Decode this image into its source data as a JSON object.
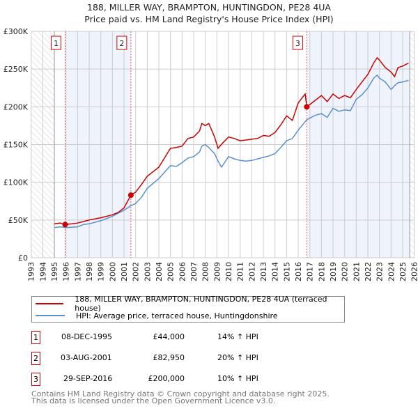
{
  "title_line1": "188, MILLER WAY, BRAMPTON, HUNTINGDON, PE28 4UA",
  "title_line2": "Price paid vs. HM Land Registry's House Price Index (HPI)",
  "colors": {
    "property": "#cc0000",
    "hpi": "#5b8fd0",
    "shade": "#eef3fc"
  },
  "chart_data": {
    "type": "line",
    "title": "188, MILLER WAY, BRAMPTON, HUNTINGDON, PE28 4UA - Price paid vs. HM Land Registry's House Price Index (HPI)",
    "xlabel": "",
    "ylabel": "",
    "xlim": [
      1993,
      2026
    ],
    "ylim": [
      0,
      300000
    ],
    "grid": true,
    "x_ticks": [
      "1993",
      "1994",
      "1995",
      "1996",
      "1997",
      "1998",
      "1999",
      "2000",
      "2001",
      "2002",
      "2003",
      "2004",
      "2005",
      "2006",
      "2007",
      "2008",
      "2009",
      "2010",
      "2011",
      "2012",
      "2013",
      "2014",
      "2015",
      "2016",
      "2017",
      "2018",
      "2019",
      "2020",
      "2021",
      "2022",
      "2023",
      "2024",
      "2025",
      "2026"
    ],
    "y_ticks": [
      {
        "v": 0,
        "label": "£0"
      },
      {
        "v": 50000,
        "label": "£50K"
      },
      {
        "v": 100000,
        "label": "£100K"
      },
      {
        "v": 150000,
        "label": "£150K"
      },
      {
        "v": 200000,
        "label": "£200K"
      },
      {
        "v": 250000,
        "label": "£250K"
      },
      {
        "v": 300000,
        "label": "£300K"
      }
    ],
    "hatched_ranges": [
      [
        1993,
        1995
      ],
      [
        2025.6,
        2026
      ]
    ],
    "shaded_ranges": [
      [
        1995.93,
        2001.59
      ],
      [
        2016.74,
        2025.6
      ]
    ],
    "series": [
      {
        "name": "188, MILLER WAY, BRAMPTON, HUNTINGDON, PE28 4UA (terraced house)",
        "color": "#cc0000",
        "x": [
          1995,
          1995.5,
          1995.93,
          1996.5,
          1997,
          1997.5,
          1998,
          1999,
          2000,
          2000.5,
          2001,
          2001.59,
          2002,
          2002.5,
          2003,
          2004,
          2005,
          2005.5,
          2006,
          2006.5,
          2007,
          2007.5,
          2007.7,
          2008,
          2008.3,
          2008.8,
          2009.1,
          2009.5,
          2010,
          2010.5,
          2011,
          2011.5,
          2012,
          2012.5,
          2013,
          2013.5,
          2014,
          2014.5,
          2015,
          2015.5,
          2016,
          2016.6,
          2016.74,
          2017,
          2017.5,
          2018,
          2018.5,
          2019,
          2019.5,
          2020,
          2020.5,
          2021,
          2021.5,
          2022,
          2022.5,
          2022.8,
          2023,
          2023.5,
          2024,
          2024.3,
          2024.6,
          2025,
          2025.5
        ],
        "values": [
          45000,
          46000,
          44000,
          45000,
          46000,
          48000,
          50000,
          53000,
          57000,
          60000,
          66000,
          82950,
          87000,
          97000,
          108000,
          120000,
          145000,
          146000,
          148000,
          158000,
          160000,
          168000,
          178000,
          175000,
          178000,
          160000,
          145000,
          152000,
          160000,
          158000,
          155000,
          156000,
          157000,
          158000,
          162000,
          161000,
          166000,
          176000,
          188000,
          182000,
          205000,
          217000,
          200000,
          203000,
          209000,
          215000,
          207000,
          217000,
          211000,
          215000,
          212000,
          223000,
          233000,
          243000,
          258000,
          265000,
          262000,
          252000,
          246000,
          240000,
          252000,
          254000,
          258000
        ]
      },
      {
        "name": "HPI: Average price, terraced house, Huntingdonshire",
        "color": "#5b8fd0",
        "x": [
          1995,
          1995.5,
          1996,
          1997,
          1997.5,
          1998,
          1999,
          2000,
          2000.5,
          2001,
          2001.59,
          2002,
          2002.5,
          2003,
          2004,
          2005,
          2005.5,
          2006,
          2006.5,
          2007,
          2007.5,
          2007.7,
          2008,
          2008.3,
          2008.8,
          2009.1,
          2009.4,
          2010,
          2010.5,
          2011,
          2011.5,
          2012,
          2012.5,
          2013,
          2013.5,
          2014,
          2014.5,
          2015,
          2015.5,
          2016,
          2016.74,
          2017,
          2017.5,
          2018,
          2018.5,
          2019,
          2019.5,
          2020,
          2020.5,
          2021,
          2021.5,
          2022,
          2022.5,
          2022.8,
          2023,
          2023.5,
          2024,
          2024.3,
          2024.6,
          2025,
          2025.5
        ],
        "values": [
          40000,
          41000,
          40000,
          41000,
          44000,
          45000,
          49000,
          55000,
          59000,
          63000,
          69000,
          72000,
          80000,
          92000,
          105000,
          122000,
          121000,
          126000,
          132000,
          134000,
          140000,
          148000,
          150000,
          146000,
          138000,
          128000,
          120000,
          134000,
          131000,
          129000,
          128000,
          129000,
          131000,
          133000,
          135000,
          138000,
          146000,
          155000,
          158000,
          169000,
          183000,
          185000,
          189000,
          191000,
          186000,
          198000,
          194000,
          196000,
          195000,
          210000,
          216000,
          225000,
          238000,
          242000,
          238000,
          233000,
          223000,
          228000,
          232000,
          233000,
          235000
        ]
      }
    ],
    "sales": [
      {
        "id": "1",
        "x": 1995.93,
        "value": 44000
      },
      {
        "id": "2",
        "x": 2001.59,
        "value": 82950
      },
      {
        "id": "3",
        "x": 2016.74,
        "value": 200000
      }
    ]
  },
  "legend": {
    "property": "188, MILLER WAY, BRAMPTON, HUNTINGDON, PE28 4UA (terraced house)",
    "hpi": "HPI: Average price, terraced house, Huntingdonshire"
  },
  "transactions": [
    {
      "num": "1",
      "date": "08-DEC-1995",
      "price": "£44,000",
      "delta": "14% ↑ HPI"
    },
    {
      "num": "2",
      "date": "03-AUG-2001",
      "price": "£82,950",
      "delta": "20% ↑ HPI"
    },
    {
      "num": "3",
      "date": "29-SEP-2016",
      "price": "£200,000",
      "delta": "10% ↑ HPI"
    }
  ],
  "footer": {
    "line1": "Contains HM Land Registry data © Crown copyright and database right 2025.",
    "line2": "This data is licensed under the Open Government Licence v3.0."
  }
}
